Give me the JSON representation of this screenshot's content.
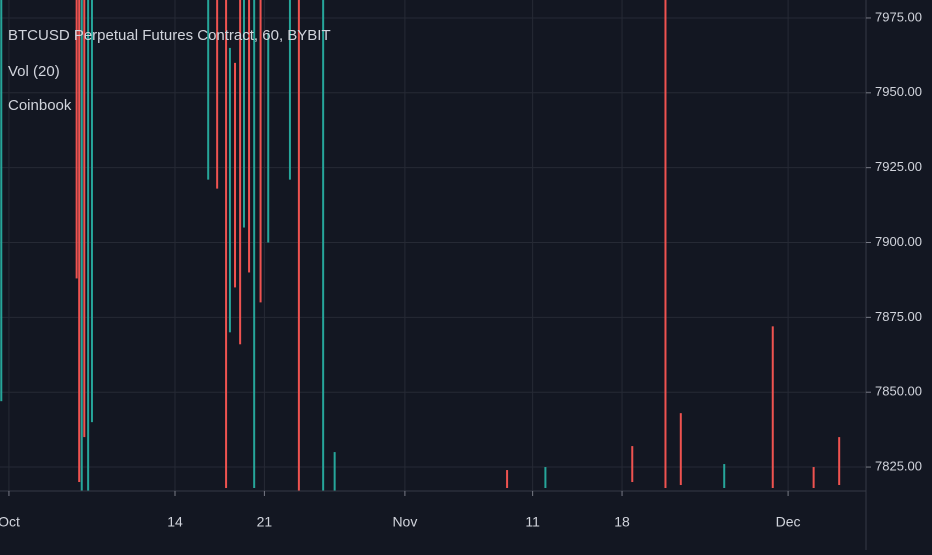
{
  "chart_data": {
    "type": "candlestick",
    "title": "BTCUSD Perpetual Futures Contract, 60, BYBIT",
    "indicators": [
      "Vol (20)",
      "Coinbook"
    ],
    "background": "#131722",
    "grid": true,
    "xlim": [
      -0.7,
      67.1
    ],
    "xticks": [
      {
        "value": 0,
        "label": "Oct"
      },
      {
        "value": 13,
        "label": "14"
      },
      {
        "value": 20,
        "label": "21"
      },
      {
        "value": 31,
        "label": "Nov"
      },
      {
        "value": 41,
        "label": "11"
      },
      {
        "value": 48,
        "label": "18"
      },
      {
        "value": 61,
        "label": "Dec"
      }
    ],
    "ylim": [
      7817,
      7981
    ],
    "yticks": [
      {
        "value": 7825,
        "label": "7825.00"
      },
      {
        "value": 7850,
        "label": "7850.00"
      },
      {
        "value": 7875,
        "label": "7875.00"
      },
      {
        "value": 7900,
        "label": "7900.00"
      },
      {
        "value": 7925,
        "label": "7925.00"
      },
      {
        "value": 7950,
        "label": "7950.00"
      },
      {
        "value": 7975,
        "label": "7975.00"
      }
    ],
    "candles": [
      {
        "x": -0.6,
        "low": 7847,
        "high": 7981,
        "color": "#26a69a"
      },
      {
        "x": 5.3,
        "low": 7888,
        "high": 7981,
        "color": "#ef5350"
      },
      {
        "x": 5.5,
        "low": 7820,
        "high": 7981,
        "color": "#ef5350"
      },
      {
        "x": 5.7,
        "low": 7817,
        "high": 7981,
        "color": "#26a69a"
      },
      {
        "x": 5.9,
        "low": 7835,
        "high": 7981,
        "color": "#ef5350"
      },
      {
        "x": 6.2,
        "low": 7817,
        "high": 7981,
        "color": "#26a69a"
      },
      {
        "x": 6.5,
        "low": 7840,
        "high": 7981,
        "color": "#26a69a"
      },
      {
        "x": 15.6,
        "low": 7921,
        "high": 7981,
        "color": "#26a69a"
      },
      {
        "x": 16.3,
        "low": 7918,
        "high": 7981,
        "color": "#ef5350"
      },
      {
        "x": 17.0,
        "low": 7818,
        "high": 7981,
        "color": "#ef5350"
      },
      {
        "x": 17.3,
        "low": 7870,
        "high": 7965,
        "color": "#26a69a"
      },
      {
        "x": 17.7,
        "low": 7885,
        "high": 7960,
        "color": "#ef5350"
      },
      {
        "x": 18.1,
        "low": 7866,
        "high": 7981,
        "color": "#ef5350"
      },
      {
        "x": 18.4,
        "low": 7905,
        "high": 7981,
        "color": "#26a69a"
      },
      {
        "x": 18.8,
        "low": 7890,
        "high": 7981,
        "color": "#ef5350"
      },
      {
        "x": 19.2,
        "low": 7818,
        "high": 7981,
        "color": "#26a69a"
      },
      {
        "x": 19.7,
        "low": 7880,
        "high": 7981,
        "color": "#ef5350"
      },
      {
        "x": 20.3,
        "low": 7900,
        "high": 7970,
        "color": "#26a69a"
      },
      {
        "x": 22.0,
        "low": 7921,
        "high": 7981,
        "color": "#26a69a"
      },
      {
        "x": 22.7,
        "low": 7817,
        "high": 7981,
        "color": "#ef5350"
      },
      {
        "x": 24.6,
        "low": 7817,
        "high": 7981,
        "color": "#26a69a"
      },
      {
        "x": 25.5,
        "low": 7817,
        "high": 7830,
        "color": "#26a69a"
      },
      {
        "x": 39.0,
        "low": 7818,
        "high": 7824,
        "color": "#ef5350"
      },
      {
        "x": 42.0,
        "low": 7818,
        "high": 7825,
        "color": "#26a69a"
      },
      {
        "x": 48.8,
        "low": 7820,
        "high": 7832,
        "color": "#ef5350"
      },
      {
        "x": 51.4,
        "low": 7818,
        "high": 7981,
        "color": "#ef5350"
      },
      {
        "x": 52.6,
        "low": 7819,
        "high": 7843,
        "color": "#ef5350"
      },
      {
        "x": 56.0,
        "low": 7818,
        "high": 7826,
        "color": "#26a69a"
      },
      {
        "x": 59.8,
        "low": 7818,
        "high": 7872,
        "color": "#ef5350"
      },
      {
        "x": 63.0,
        "low": 7818,
        "high": 7825,
        "color": "#ef5350"
      },
      {
        "x": 65.0,
        "low": 7819,
        "high": 7835,
        "color": "#ef5350"
      }
    ]
  }
}
